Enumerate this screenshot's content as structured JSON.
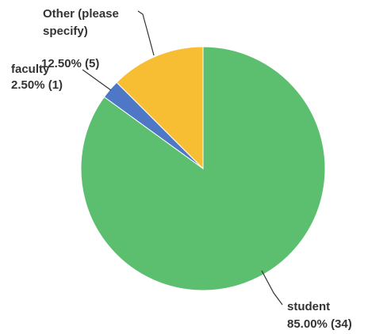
{
  "chart_data": {
    "type": "pie",
    "title": "",
    "start_angle_deg": 0,
    "direction": "clockwise",
    "slices": [
      {
        "label": "student",
        "percent": 85.0,
        "count": 34,
        "value_text": "85.00% (34)",
        "color": "#5cbf70"
      },
      {
        "label": "faculty",
        "percent": 2.5,
        "count": 1,
        "value_text": "2.50% (1)",
        "color": "#4e78c6"
      },
      {
        "label": "Other (please specify)",
        "label_lines": [
          "Other (please",
          "specify)"
        ],
        "percent": 12.5,
        "count": 5,
        "value_text": "12.50% (5)",
        "color": "#f7bd33"
      }
    ]
  }
}
